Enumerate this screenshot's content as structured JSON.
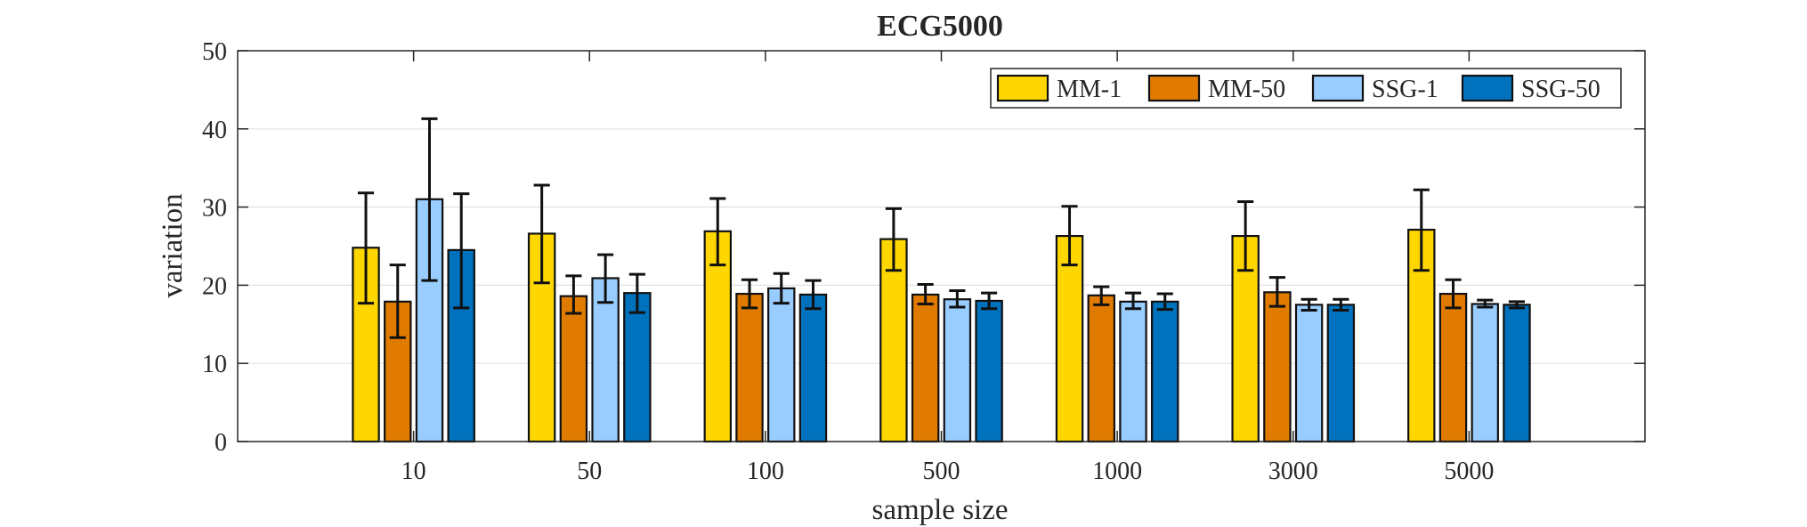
{
  "chart_data": {
    "type": "bar",
    "title": "ECG5000",
    "xlabel": "sample size",
    "ylabel": "variation",
    "ylim": [
      0,
      50
    ],
    "yticks": [
      0,
      10,
      20,
      30,
      40,
      50
    ],
    "grid": true,
    "legend_position": "top-right",
    "categories": [
      "10",
      "50",
      "100",
      "500",
      "1000",
      "3000",
      "5000"
    ],
    "series": [
      {
        "name": "MM-1",
        "color": "#FFD700",
        "values": [
          24.8,
          26.6,
          26.9,
          25.9,
          26.3,
          26.3,
          27.1
        ],
        "err_low": [
          17.7,
          20.3,
          22.6,
          21.9,
          22.6,
          21.9,
          21.9
        ],
        "err_high": [
          31.8,
          32.8,
          31.1,
          29.8,
          30.1,
          30.7,
          32.2
        ]
      },
      {
        "name": "MM-50",
        "color": "#E07B00",
        "values": [
          17.9,
          18.6,
          18.9,
          18.8,
          18.7,
          19.1,
          18.9
        ],
        "err_low": [
          13.3,
          16.4,
          17.1,
          17.6,
          17.5,
          17.3,
          17.1
        ],
        "err_high": [
          22.6,
          21.2,
          20.7,
          20.1,
          19.8,
          21.0,
          20.7
        ]
      },
      {
        "name": "SSG-1",
        "color": "#99CCFF",
        "values": [
          31.0,
          20.9,
          19.6,
          18.2,
          17.9,
          17.5,
          17.6
        ],
        "err_low": [
          20.6,
          17.8,
          17.7,
          17.2,
          17.0,
          16.8,
          17.2
        ],
        "err_high": [
          41.3,
          23.9,
          21.5,
          19.3,
          19.0,
          18.2,
          18.1
        ]
      },
      {
        "name": "SSG-50",
        "color": "#0072BD",
        "values": [
          24.5,
          19.0,
          18.8,
          18.0,
          17.9,
          17.5,
          17.5
        ],
        "err_low": [
          17.1,
          16.5,
          17.0,
          17.0,
          16.9,
          16.8,
          17.1
        ],
        "err_high": [
          31.7,
          21.4,
          20.6,
          19.0,
          18.9,
          18.2,
          17.9
        ]
      }
    ]
  }
}
